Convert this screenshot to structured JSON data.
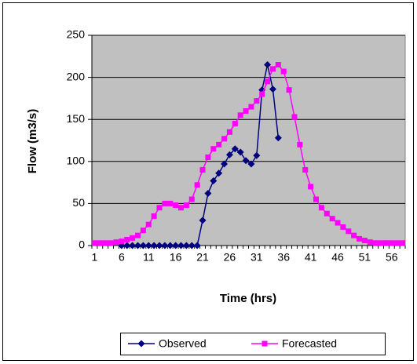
{
  "chart_data": {
    "type": "line",
    "x_label": "Time (hrs)",
    "y_label": "Flow (m3/s)",
    "categories": [
      "1",
      null,
      null,
      null,
      null,
      "6",
      null,
      null,
      null,
      null,
      "11",
      null,
      null,
      null,
      null,
      "16",
      null,
      null,
      null,
      null,
      "21",
      null,
      null,
      null,
      null,
      "26",
      null,
      null,
      null,
      null,
      "31",
      null,
      null,
      null,
      null,
      "36",
      null,
      null,
      null,
      null,
      "41",
      null,
      null,
      null,
      null,
      "46",
      null,
      null,
      null,
      null,
      "51",
      null,
      null,
      null,
      null,
      "56",
      null,
      null
    ],
    "series": [
      {
        "name": "Observed",
        "color": "#000080",
        "marker": "diamond",
        "values": [
          null,
          null,
          null,
          null,
          null,
          0,
          0,
          0,
          0,
          0,
          0,
          0,
          0,
          0,
          0,
          0,
          0,
          0,
          0,
          0,
          30,
          62,
          77,
          86,
          97,
          108,
          115,
          111,
          101,
          97,
          107,
          185,
          215,
          186,
          128,
          null,
          null,
          null,
          null,
          null,
          null,
          null,
          null,
          null,
          null,
          null,
          null,
          null,
          null,
          null,
          null,
          null,
          null,
          null,
          null,
          null,
          null,
          null
        ]
      },
      {
        "name": "Forecasted",
        "color": "#ff00ff",
        "marker": "square",
        "values": [
          3,
          3,
          3,
          3,
          4,
          5,
          7,
          9,
          12,
          18,
          25,
          35,
          45,
          50,
          50,
          48,
          45,
          48,
          55,
          72,
          90,
          105,
          115,
          120,
          127,
          135,
          145,
          155,
          160,
          165,
          172,
          180,
          195,
          210,
          215,
          207,
          185,
          153,
          120,
          90,
          70,
          55,
          45,
          38,
          32,
          27,
          22,
          17,
          12,
          8,
          6,
          4,
          3,
          3,
          3,
          3,
          3,
          3
        ]
      }
    ],
    "ylim": [
      0,
      250
    ],
    "yticks": [
      0,
      50,
      100,
      150,
      200,
      250
    ],
    "grid": true,
    "legend": "bottom"
  }
}
